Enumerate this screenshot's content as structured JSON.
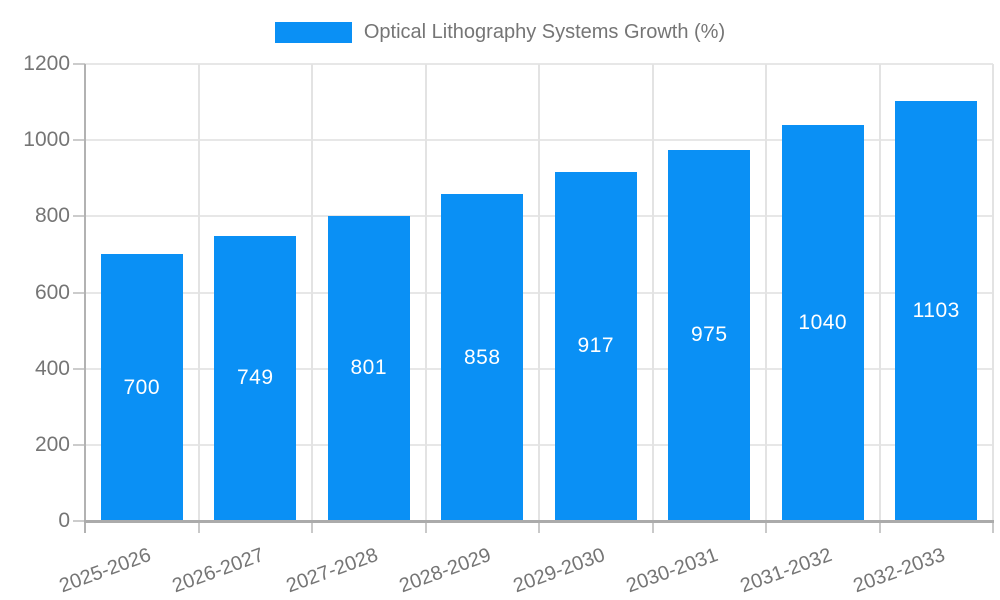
{
  "chart_data": {
    "type": "bar",
    "title": "Optical Lithography Systems Growth (%)",
    "legend_entries": [
      "Optical Lithography Systems Growth (%)"
    ],
    "legend_position": "top-center",
    "categories": [
      "2025-2026",
      "2026-2027",
      "2027-2028",
      "2028-2029",
      "2029-2030",
      "2030-2031",
      "2031-2032",
      "2032-2033"
    ],
    "values": [
      700,
      749,
      801,
      858,
      917,
      975,
      1040,
      1103
    ],
    "xlabel": "",
    "ylabel": "",
    "ylim": [
      0,
      1200
    ],
    "yticks": [
      0,
      200,
      400,
      600,
      800,
      1000,
      1200
    ],
    "grid": true,
    "colors": {
      "bar": "#0a90f5",
      "value_label": "#ffffff",
      "axis_text": "#757575",
      "gridline": "#e7e7e7",
      "axis_line": "#ababab"
    }
  }
}
